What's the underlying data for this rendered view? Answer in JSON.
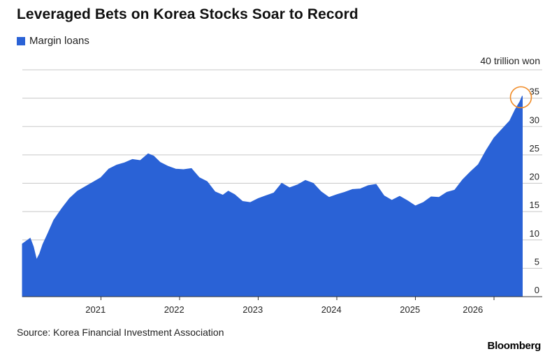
{
  "header": {
    "title": "Leveraged Bets on Korea Stocks Soar to Record"
  },
  "legend": {
    "items": [
      {
        "label": "Margin loans",
        "color": "#2a62d6"
      }
    ]
  },
  "axis": {
    "unit_label": "40 trillion won"
  },
  "footer": {
    "source": "Source: Korea Financial Investment Association",
    "brand": "Bloomberg"
  },
  "colors": {
    "series": "#2a62d6",
    "highlight_circle": "#f08a24",
    "grid": "#c8c8c8"
  },
  "chart_data": {
    "type": "area",
    "title": "Leveraged Bets on Korea Stocks Soar to Record",
    "xlabel": "",
    "ylabel": "",
    "ylim": [
      0,
      40
    ],
    "xlim": [
      2020.0,
      2026.4
    ],
    "y_ticks": [
      0,
      5,
      10,
      15,
      20,
      25,
      30,
      35
    ],
    "x_ticks": [
      2021,
      2022,
      2023,
      2024,
      2025,
      2026
    ],
    "grid": true,
    "legend_position": "top-left",
    "annotation": "circle marking record high",
    "series": [
      {
        "name": "Margin loans",
        "x": [
          2020.0,
          2020.05,
          2020.1,
          2020.14,
          2020.18,
          2020.22,
          2020.26,
          2020.32,
          2020.4,
          2020.5,
          2020.6,
          2020.7,
          2020.8,
          2020.9,
          2021.0,
          2021.1,
          2021.2,
          2021.3,
          2021.4,
          2021.5,
          2021.6,
          2021.67,
          2021.75,
          2021.85,
          2021.95,
          2022.05,
          2022.15,
          2022.25,
          2022.35,
          2022.45,
          2022.55,
          2022.62,
          2022.7,
          2022.8,
          2022.9,
          2023.0,
          2023.1,
          2023.2,
          2023.3,
          2023.4,
          2023.5,
          2023.6,
          2023.7,
          2023.8,
          2023.9,
          2024.0,
          2024.1,
          2024.2,
          2024.3,
          2024.4,
          2024.5,
          2024.6,
          2024.7,
          2024.8,
          2024.9,
          2025.0,
          2025.1,
          2025.2,
          2025.3,
          2025.4,
          2025.5,
          2025.6,
          2025.7,
          2025.8,
          2025.9,
          2026.0,
          2026.1,
          2026.2,
          2026.27,
          2026.33,
          2026.36
        ],
        "y": [
          9.3,
          9.8,
          10.3,
          8.8,
          6.5,
          7.6,
          9.2,
          11.0,
          13.5,
          15.5,
          17.3,
          18.6,
          19.4,
          20.2,
          21.0,
          22.5,
          23.2,
          23.6,
          24.2,
          24.0,
          25.2,
          24.8,
          23.7,
          23.0,
          22.5,
          22.4,
          22.6,
          21.0,
          20.3,
          18.5,
          17.9,
          18.6,
          18.0,
          16.8,
          16.6,
          17.3,
          17.8,
          18.3,
          20.0,
          19.2,
          19.7,
          20.5,
          20.0,
          18.5,
          17.5,
          18.0,
          18.4,
          18.9,
          19.0,
          19.6,
          19.8,
          17.8,
          17.0,
          17.7,
          16.9,
          16.0,
          16.6,
          17.6,
          17.5,
          18.4,
          18.8,
          20.6,
          22.0,
          23.3,
          25.8,
          28.0,
          29.5,
          31.0,
          33.0,
          34.4,
          35.4
        ]
      }
    ]
  }
}
